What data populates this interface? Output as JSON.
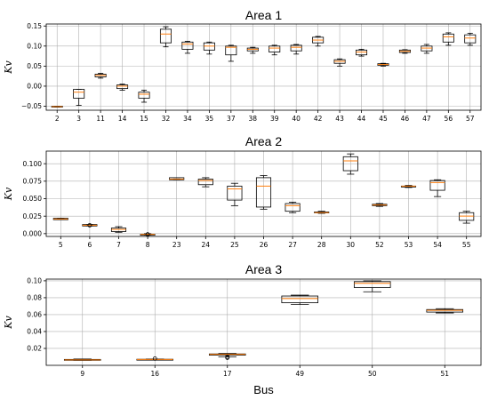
{
  "chart_data": [
    {
      "type": "box",
      "title": "Area 1",
      "ylabel": "Kv",
      "xlabel": "",
      "ylim": [
        -0.06,
        0.155
      ],
      "yticks": [
        -0.05,
        0.0,
        0.05,
        0.1,
        0.15
      ],
      "ytick_labels": [
        "−0.05",
        "0.00",
        "0.05",
        "0.10",
        "0.15"
      ],
      "grid": true,
      "categories": [
        "2",
        "3",
        "11",
        "14",
        "15",
        "32",
        "34",
        "35",
        "37",
        "38",
        "39",
        "40",
        "42",
        "43",
        "44",
        "45",
        "46",
        "47",
        "56",
        "57"
      ],
      "boxes": [
        {
          "whislo": -0.052,
          "q1": -0.052,
          "med": -0.051,
          "q3": -0.05,
          "whishi": -0.05
        },
        {
          "whislo": -0.048,
          "q1": -0.03,
          "med": -0.015,
          "q3": -0.008,
          "whishi": -0.008
        },
        {
          "whislo": 0.02,
          "q1": 0.023,
          "med": 0.027,
          "q3": 0.03,
          "whishi": 0.032
        },
        {
          "whislo": -0.01,
          "q1": -0.006,
          "med": 0.0,
          "q3": 0.003,
          "whishi": 0.005
        },
        {
          "whislo": -0.04,
          "q1": -0.03,
          "med": -0.02,
          "q3": -0.015,
          "whishi": -0.01
        },
        {
          "whislo": 0.098,
          "q1": 0.108,
          "med": 0.13,
          "q3": 0.142,
          "whishi": 0.148
        },
        {
          "whislo": 0.082,
          "q1": 0.092,
          "med": 0.105,
          "q3": 0.11,
          "whishi": 0.112
        },
        {
          "whislo": 0.08,
          "q1": 0.09,
          "med": 0.1,
          "q3": 0.108,
          "whishi": 0.11
        },
        {
          "whislo": 0.062,
          "q1": 0.078,
          "med": 0.097,
          "q3": 0.1,
          "whishi": 0.102
        },
        {
          "whislo": 0.082,
          "q1": 0.088,
          "med": 0.092,
          "q3": 0.095,
          "whishi": 0.097
        },
        {
          "whislo": 0.078,
          "q1": 0.085,
          "med": 0.095,
          "q3": 0.1,
          "whishi": 0.102
        },
        {
          "whislo": 0.08,
          "q1": 0.088,
          "med": 0.097,
          "q3": 0.102,
          "whishi": 0.104
        },
        {
          "whislo": 0.1,
          "q1": 0.108,
          "med": 0.115,
          "q3": 0.122,
          "whishi": 0.124
        },
        {
          "whislo": 0.05,
          "q1": 0.057,
          "med": 0.062,
          "q3": 0.066,
          "whishi": 0.068
        },
        {
          "whislo": 0.075,
          "q1": 0.078,
          "med": 0.085,
          "q3": 0.09,
          "whishi": 0.092
        },
        {
          "whislo": 0.05,
          "q1": 0.052,
          "med": 0.054,
          "q3": 0.056,
          "whishi": 0.057
        },
        {
          "whislo": 0.082,
          "q1": 0.084,
          "med": 0.087,
          "q3": 0.09,
          "whishi": 0.091
        },
        {
          "whislo": 0.082,
          "q1": 0.088,
          "med": 0.095,
          "q3": 0.1,
          "whishi": 0.104
        },
        {
          "whislo": 0.102,
          "q1": 0.11,
          "med": 0.123,
          "q3": 0.13,
          "whishi": 0.133
        },
        {
          "whislo": 0.102,
          "q1": 0.108,
          "med": 0.12,
          "q3": 0.128,
          "whishi": 0.132
        }
      ]
    },
    {
      "type": "box",
      "title": "Area 2",
      "ylabel": "Kv",
      "xlabel": "",
      "ylim": [
        -0.004,
        0.118
      ],
      "yticks": [
        0.0,
        0.025,
        0.05,
        0.075,
        0.1
      ],
      "ytick_labels": [
        "0.000",
        "0.025",
        "0.050",
        "0.075",
        "0.100"
      ],
      "grid": true,
      "categories": [
        "5",
        "6",
        "7",
        "8",
        "23",
        "24",
        "25",
        "26",
        "27",
        "28",
        "30",
        "52",
        "53",
        "54",
        "55"
      ],
      "boxes": [
        {
          "whislo": 0.02,
          "q1": 0.02,
          "med": 0.021,
          "q3": 0.022,
          "whishi": 0.022
        },
        {
          "whislo": 0.011,
          "q1": 0.011,
          "med": 0.012,
          "q3": 0.013,
          "whishi": 0.013,
          "outliers": [
            0.012
          ]
        },
        {
          "whislo": 0.002,
          "q1": 0.003,
          "med": 0.006,
          "q3": 0.008,
          "whishi": 0.01
        },
        {
          "whislo": -0.002,
          "q1": -0.001,
          "med": -0.001,
          "q3": -0.001,
          "whishi": 0.0,
          "outliers": [
            -0.001
          ]
        },
        {
          "whislo": 0.077,
          "q1": 0.077,
          "med": 0.078,
          "q3": 0.08,
          "whishi": 0.08
        },
        {
          "whislo": 0.067,
          "q1": 0.07,
          "med": 0.076,
          "q3": 0.078,
          "whishi": 0.08
        },
        {
          "whislo": 0.04,
          "q1": 0.048,
          "med": 0.064,
          "q3": 0.068,
          "whishi": 0.072
        },
        {
          "whislo": 0.035,
          "q1": 0.038,
          "med": 0.068,
          "q3": 0.08,
          "whishi": 0.083
        },
        {
          "whislo": 0.03,
          "q1": 0.032,
          "med": 0.04,
          "q3": 0.043,
          "whishi": 0.045
        },
        {
          "whislo": 0.029,
          "q1": 0.03,
          "med": 0.03,
          "q3": 0.031,
          "whishi": 0.032
        },
        {
          "whislo": 0.085,
          "q1": 0.09,
          "med": 0.104,
          "q3": 0.11,
          "whishi": 0.114
        },
        {
          "whislo": 0.039,
          "q1": 0.04,
          "med": 0.041,
          "q3": 0.042,
          "whishi": 0.043
        },
        {
          "whislo": 0.066,
          "q1": 0.067,
          "med": 0.068,
          "q3": 0.068,
          "whishi": 0.069
        },
        {
          "whislo": 0.053,
          "q1": 0.062,
          "med": 0.073,
          "q3": 0.076,
          "whishi": 0.077
        },
        {
          "whislo": 0.015,
          "q1": 0.019,
          "med": 0.025,
          "q3": 0.03,
          "whishi": 0.032
        }
      ]
    },
    {
      "type": "box",
      "title": "Area 3",
      "ylabel": "Kv",
      "xlabel": "Bus",
      "ylim": [
        0.0,
        0.102
      ],
      "yticks": [
        0.02,
        0.04,
        0.06,
        0.08,
        0.1
      ],
      "ytick_labels": [
        "0.02",
        "0.04",
        "0.06",
        "0.08",
        "0.10"
      ],
      "grid": true,
      "categories": [
        "9",
        "16",
        "17",
        "49",
        "50",
        "51"
      ],
      "boxes": [
        {
          "whislo": 0.006,
          "q1": 0.006,
          "med": 0.0065,
          "q3": 0.007,
          "whishi": 0.0075
        },
        {
          "whislo": 0.0065,
          "q1": 0.0068,
          "med": 0.007,
          "q3": 0.0072,
          "whishi": 0.0075,
          "outliers": [
            0.008
          ]
        },
        {
          "whislo": 0.01,
          "q1": 0.012,
          "med": 0.013,
          "q3": 0.0135,
          "whishi": 0.014,
          "outliers": [
            0.009,
            0.01
          ]
        },
        {
          "whislo": 0.072,
          "q1": 0.074,
          "med": 0.079,
          "q3": 0.082,
          "whishi": 0.083
        },
        {
          "whislo": 0.087,
          "q1": 0.092,
          "med": 0.097,
          "q3": 0.099,
          "whishi": 0.1
        },
        {
          "whislo": 0.062,
          "q1": 0.063,
          "med": 0.065,
          "q3": 0.066,
          "whishi": 0.067
        }
      ]
    }
  ]
}
